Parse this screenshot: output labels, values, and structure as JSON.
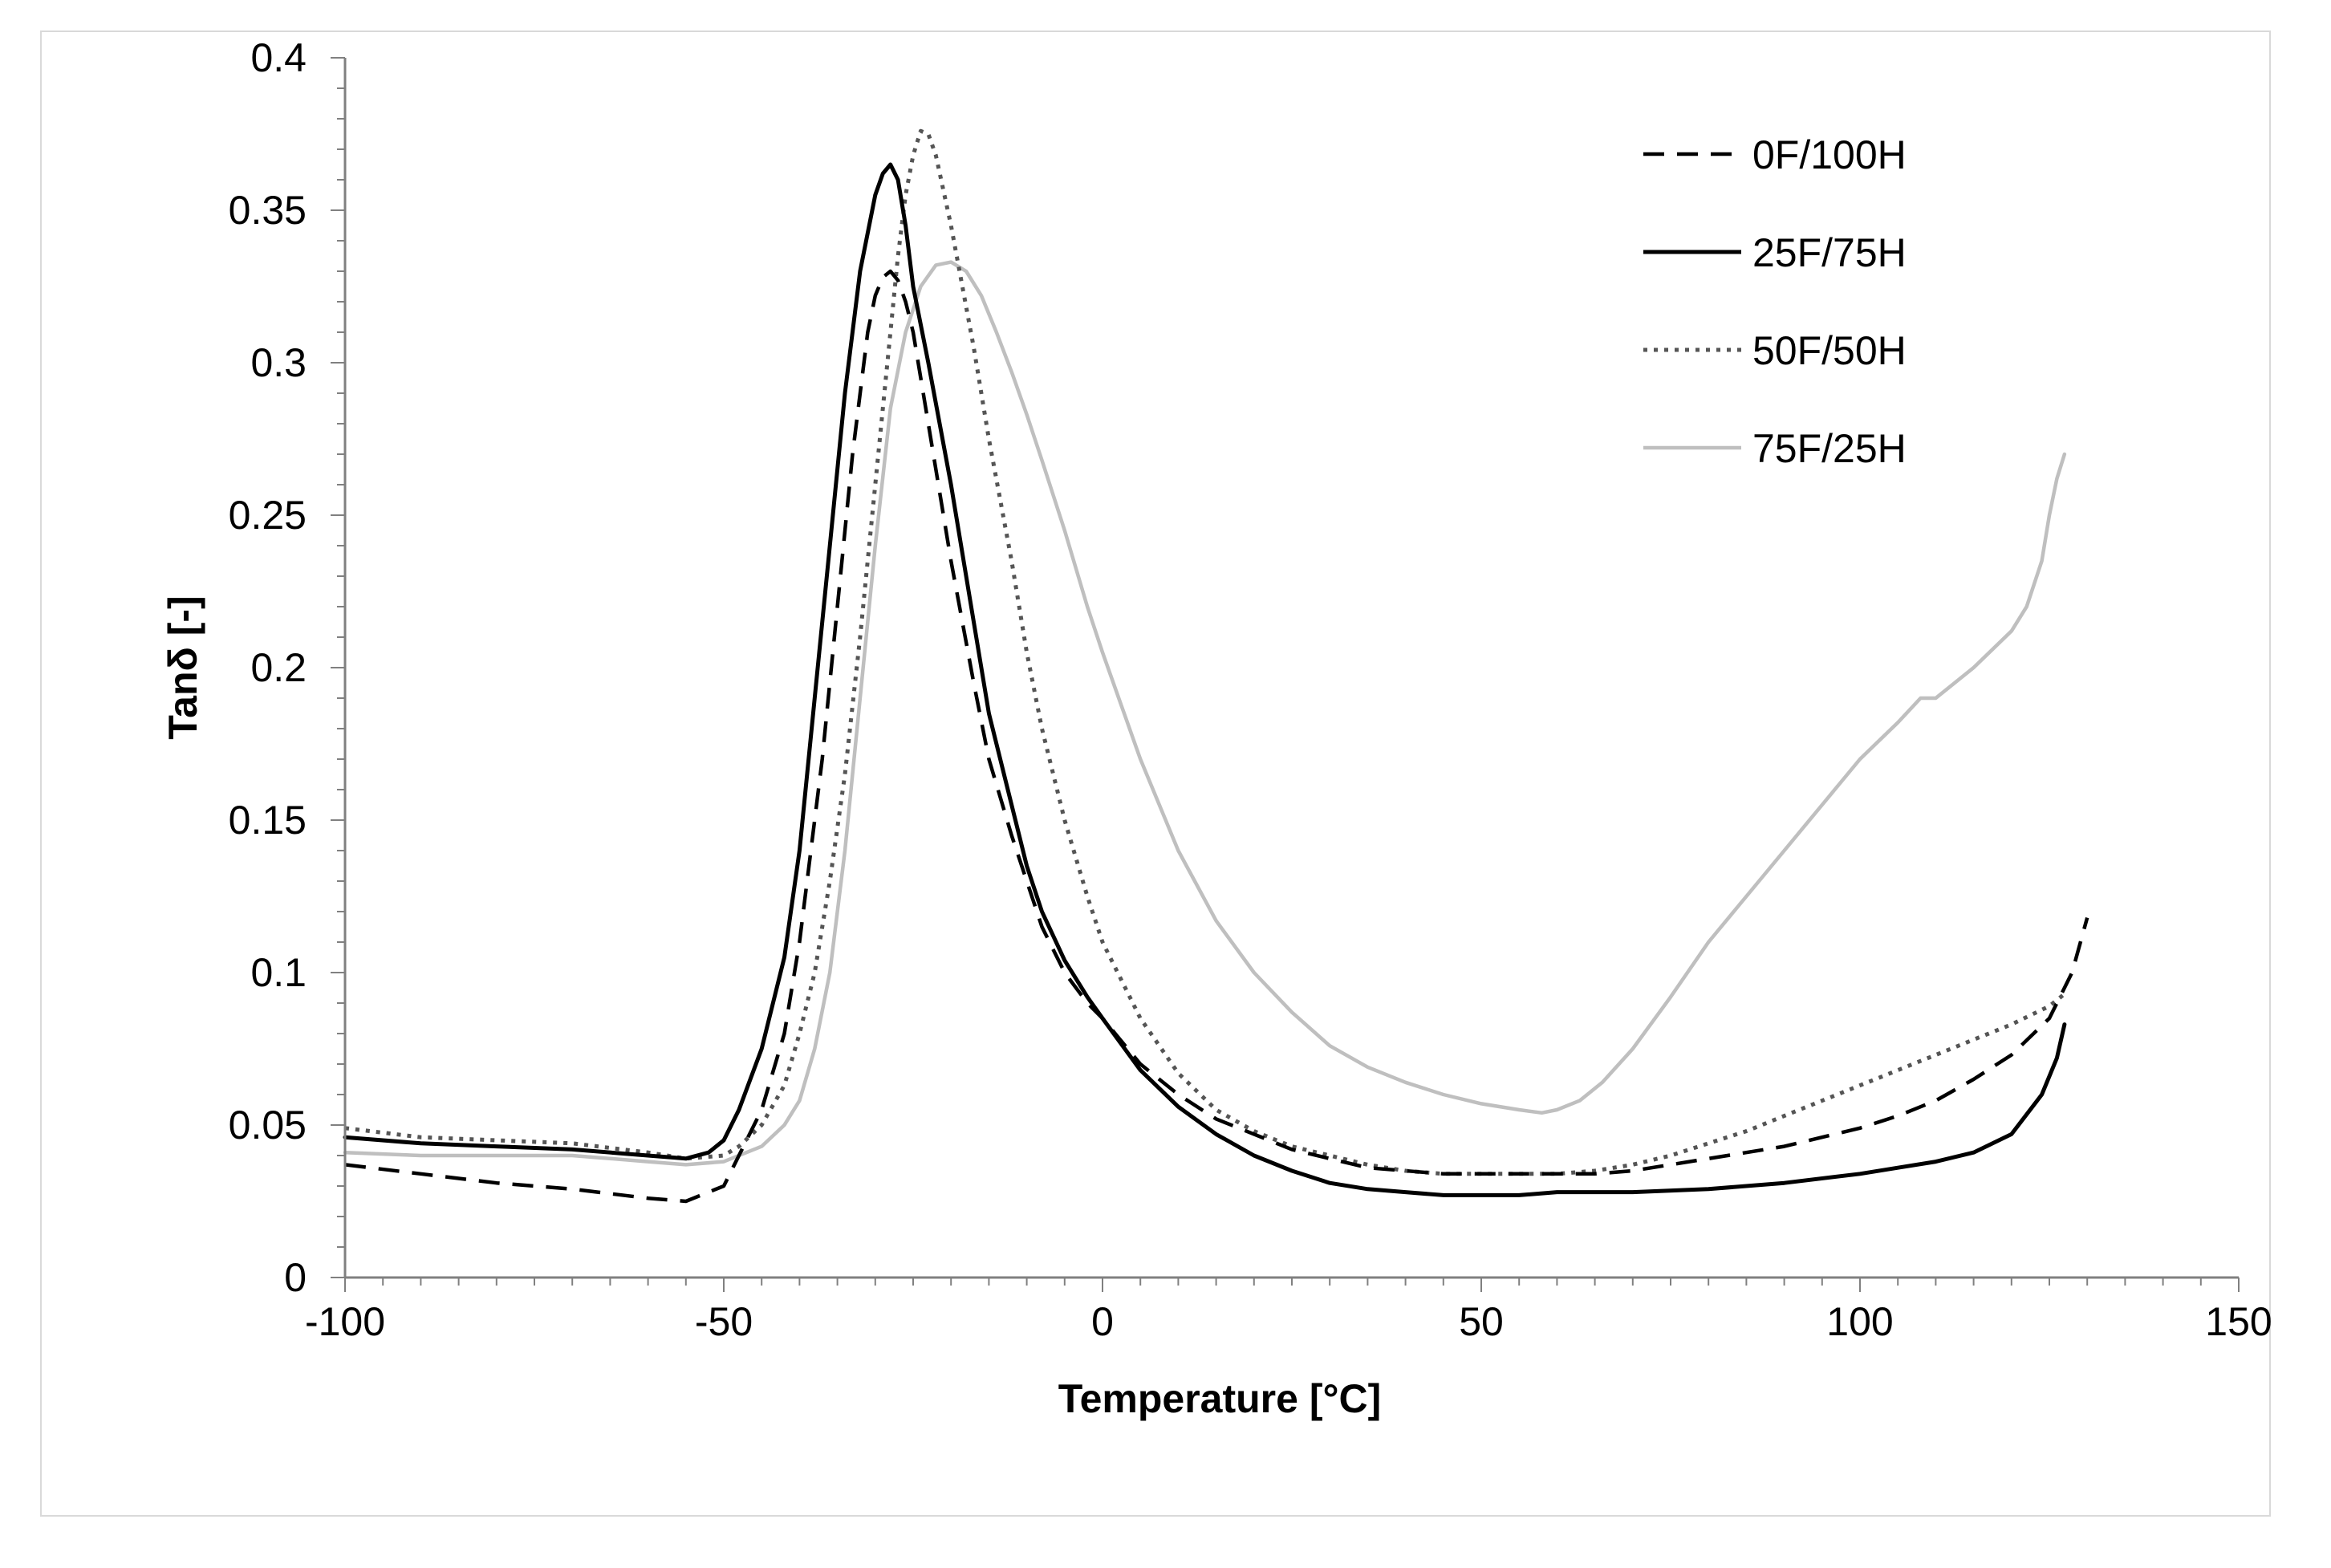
{
  "chart_data": {
    "type": "line",
    "title": "",
    "xlabel": "Temperature [°C]",
    "ylabel": "Tanδ [-]",
    "xlim": [
      -100,
      150
    ],
    "ylim": [
      0,
      0.4
    ],
    "x_ticks": [
      -100,
      -50,
      0,
      50,
      100,
      150
    ],
    "x_tick_labels": [
      "-100",
      "-50",
      "0",
      "50",
      "100",
      "150"
    ],
    "y_ticks": [
      0,
      0.05,
      0.1,
      0.15,
      0.2,
      0.25,
      0.3,
      0.35,
      0.4
    ],
    "y_tick_labels": [
      "0",
      "0.05",
      "0.1",
      "0.15",
      "0.2",
      "0.25",
      "0.3",
      "0.35",
      "0.4"
    ],
    "grid": false,
    "legend_position": "top-right",
    "series": [
      {
        "name": "0F/100H",
        "style": "dashed",
        "color": "#000000",
        "x": [
          -100,
          -90,
          -80,
          -70,
          -60,
          -55,
          -50,
          -48,
          -45,
          -42,
          -40,
          -37,
          -35,
          -33,
          -31,
          -30,
          -29,
          -28,
          -27,
          -26,
          -25,
          -23,
          -20,
          -17,
          -15,
          -12,
          -10,
          -8,
          -5,
          -2,
          0,
          5,
          10,
          15,
          20,
          25,
          30,
          35,
          40,
          45,
          50,
          55,
          60,
          65,
          70,
          75,
          80,
          85,
          90,
          95,
          100,
          105,
          110,
          115,
          120,
          125,
          128,
          130
        ],
        "y": [
          0.037,
          0.034,
          0.031,
          0.029,
          0.026,
          0.025,
          0.03,
          0.04,
          0.055,
          0.08,
          0.11,
          0.17,
          0.22,
          0.27,
          0.31,
          0.322,
          0.328,
          0.33,
          0.327,
          0.32,
          0.31,
          0.28,
          0.235,
          0.195,
          0.17,
          0.145,
          0.13,
          0.115,
          0.1,
          0.09,
          0.085,
          0.07,
          0.06,
          0.052,
          0.047,
          0.042,
          0.039,
          0.036,
          0.035,
          0.034,
          0.034,
          0.034,
          0.034,
          0.034,
          0.035,
          0.037,
          0.039,
          0.041,
          0.043,
          0.046,
          0.049,
          0.053,
          0.058,
          0.065,
          0.073,
          0.085,
          0.1,
          0.118
        ]
      },
      {
        "name": "25F/75H",
        "style": "solid",
        "color": "#000000",
        "x": [
          -100,
          -90,
          -80,
          -70,
          -60,
          -55,
          -52,
          -50,
          -48,
          -45,
          -42,
          -40,
          -38,
          -36,
          -34,
          -32,
          -30,
          -29,
          -28,
          -27,
          -26,
          -25,
          -23,
          -20,
          -17,
          -15,
          -12,
          -10,
          -8,
          -5,
          -2,
          0,
          5,
          10,
          15,
          20,
          25,
          30,
          35,
          40,
          45,
          50,
          55,
          60,
          70,
          80,
          90,
          100,
          105,
          110,
          115,
          120,
          124,
          126,
          127
        ],
        "y": [
          0.046,
          0.044,
          0.043,
          0.042,
          0.04,
          0.039,
          0.041,
          0.045,
          0.055,
          0.075,
          0.105,
          0.14,
          0.19,
          0.24,
          0.29,
          0.33,
          0.355,
          0.362,
          0.365,
          0.36,
          0.345,
          0.325,
          0.3,
          0.26,
          0.215,
          0.185,
          0.155,
          0.135,
          0.12,
          0.104,
          0.092,
          0.085,
          0.068,
          0.056,
          0.047,
          0.04,
          0.035,
          0.031,
          0.029,
          0.028,
          0.027,
          0.027,
          0.027,
          0.028,
          0.028,
          0.029,
          0.031,
          0.034,
          0.036,
          0.038,
          0.041,
          0.047,
          0.06,
          0.072,
          0.083
        ]
      },
      {
        "name": "50F/50H",
        "style": "dotted",
        "color": "#555555",
        "x": [
          -100,
          -90,
          -80,
          -70,
          -60,
          -55,
          -50,
          -48,
          -45,
          -42,
          -40,
          -38,
          -36,
          -34,
          -32,
          -30,
          -28,
          -27,
          -26,
          -25,
          -24,
          -23,
          -22,
          -20,
          -17,
          -15,
          -12,
          -10,
          -8,
          -5,
          -2,
          0,
          5,
          10,
          15,
          20,
          25,
          30,
          35,
          40,
          45,
          50,
          55,
          60,
          65,
          70,
          75,
          80,
          85,
          90,
          95,
          100,
          105,
          110,
          115,
          120,
          125,
          127
        ],
        "y": [
          0.049,
          0.046,
          0.045,
          0.044,
          0.041,
          0.039,
          0.04,
          0.043,
          0.05,
          0.063,
          0.08,
          0.1,
          0.13,
          0.165,
          0.21,
          0.26,
          0.31,
          0.335,
          0.355,
          0.368,
          0.376,
          0.375,
          0.368,
          0.345,
          0.305,
          0.275,
          0.235,
          0.205,
          0.18,
          0.15,
          0.125,
          0.11,
          0.085,
          0.067,
          0.055,
          0.048,
          0.043,
          0.04,
          0.037,
          0.035,
          0.034,
          0.034,
          0.034,
          0.034,
          0.035,
          0.037,
          0.04,
          0.044,
          0.048,
          0.053,
          0.058,
          0.063,
          0.068,
          0.073,
          0.078,
          0.083,
          0.089,
          0.093
        ]
      },
      {
        "name": "75F/25H",
        "style": "solid",
        "color": "#bfbfbf",
        "x": [
          -100,
          -90,
          -80,
          -70,
          -60,
          -55,
          -50,
          -45,
          -42,
          -40,
          -38,
          -36,
          -34,
          -32,
          -30,
          -28,
          -26,
          -24,
          -22,
          -20,
          -18,
          -16,
          -14,
          -12,
          -10,
          -8,
          -5,
          -2,
          0,
          5,
          10,
          15,
          20,
          25,
          30,
          35,
          40,
          45,
          50,
          55,
          58,
          60,
          63,
          66,
          70,
          75,
          80,
          85,
          90,
          95,
          100,
          105,
          108,
          110,
          115,
          120,
          122,
          124,
          125,
          126,
          127
        ],
        "y": [
          0.041,
          0.04,
          0.04,
          0.04,
          0.038,
          0.037,
          0.038,
          0.043,
          0.05,
          0.058,
          0.075,
          0.1,
          0.14,
          0.19,
          0.24,
          0.285,
          0.31,
          0.325,
          0.332,
          0.333,
          0.33,
          0.322,
          0.31,
          0.297,
          0.283,
          0.268,
          0.245,
          0.22,
          0.205,
          0.17,
          0.14,
          0.117,
          0.1,
          0.087,
          0.076,
          0.069,
          0.064,
          0.06,
          0.057,
          0.055,
          0.054,
          0.055,
          0.058,
          0.064,
          0.075,
          0.092,
          0.11,
          0.125,
          0.14,
          0.155,
          0.17,
          0.182,
          0.19,
          0.19,
          0.2,
          0.212,
          0.22,
          0.235,
          0.25,
          0.262,
          0.27
        ]
      }
    ]
  }
}
